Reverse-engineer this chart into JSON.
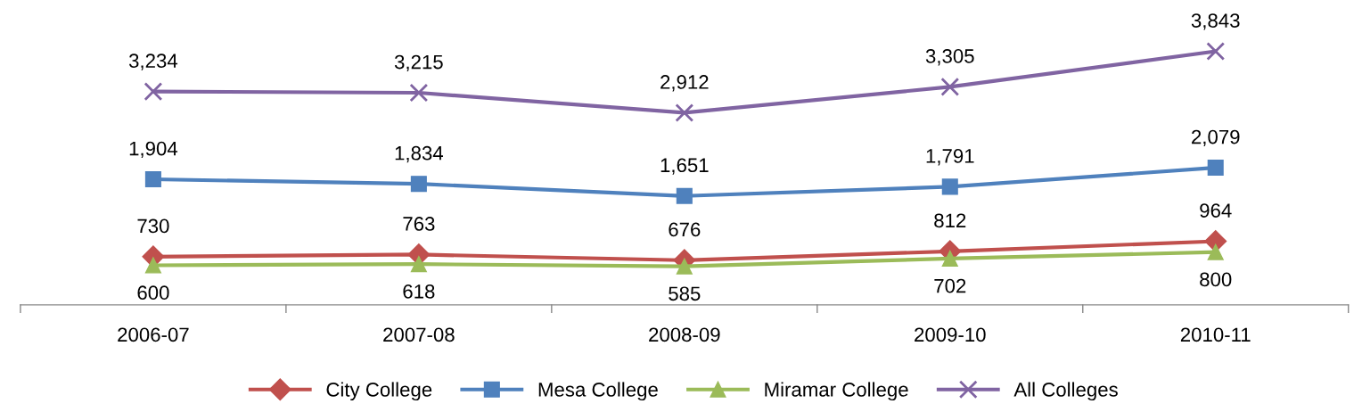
{
  "chart_data": {
    "type": "line",
    "categories": [
      "2006-07",
      "2007-08",
      "2008-09",
      "2009-10",
      "2010-11"
    ],
    "series": [
      {
        "name": "City College",
        "color": "#c0504d",
        "marker": "diamond",
        "values": [
          730,
          763,
          676,
          812,
          964
        ],
        "value_labels": [
          "730",
          "763",
          "676",
          "812",
          "964"
        ]
      },
      {
        "name": "Mesa College",
        "color": "#4f81bd",
        "marker": "square",
        "values": [
          1904,
          1834,
          1651,
          1791,
          2079
        ],
        "value_labels": [
          "1,904",
          "1,834",
          "1,651",
          "1,791",
          "2,079"
        ]
      },
      {
        "name": "Miramar College",
        "color": "#9bbb59",
        "marker": "triangle",
        "values": [
          600,
          618,
          585,
          702,
          800
        ],
        "value_labels": [
          "600",
          "618",
          "585",
          "702",
          "800"
        ]
      },
      {
        "name": "All Colleges",
        "color": "#8064a2",
        "marker": "cross",
        "values": [
          3234,
          3215,
          2912,
          3305,
          3843
        ],
        "value_labels": [
          "3,234",
          "3,215",
          "2,912",
          "3,305",
          "3,843"
        ]
      }
    ],
    "tick_labels": "x",
    "legend": "bottom",
    "line_style": "solid"
  }
}
